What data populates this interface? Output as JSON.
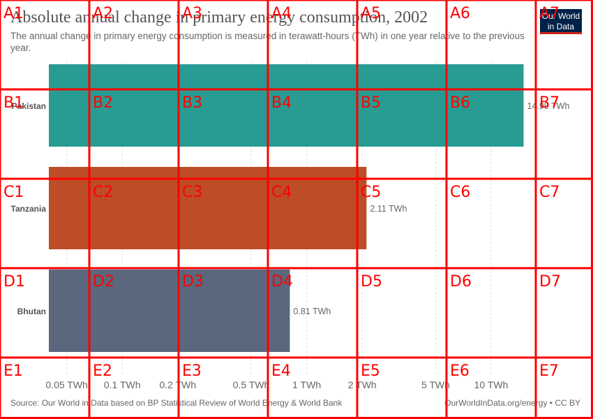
{
  "header": {
    "title": "Absolute annual change in primary energy consumption, 2002",
    "subtitle": "The annual change in primary energy consumption is measured in terawatt-hours (TWh) in one year relative to the previous year."
  },
  "logo": {
    "line1": "Our World",
    "line2": "in Data"
  },
  "chart_data": {
    "type": "bar",
    "orientation": "horizontal",
    "x_scale": "log",
    "xlim": [
      0.04,
      16
    ],
    "categories": [
      "Pakistan",
      "Tanzania",
      "Bhutan"
    ],
    "values": [
      14.99,
      2.11,
      0.81
    ],
    "value_labels": [
      "14.99 TWh",
      "2.11 TWh",
      "0.81 TWh"
    ],
    "bar_colors": [
      "#18958b",
      "#b83f16",
      "#4d5b73"
    ],
    "ticks": [
      {
        "value": 0.05,
        "label": "0.05 TWh"
      },
      {
        "value": 0.1,
        "label": "0.1 TWh"
      },
      {
        "value": 0.2,
        "label": "0.2 TWh"
      },
      {
        "value": 0.5,
        "label": "0.5 TWh"
      },
      {
        "value": 1,
        "label": "1 TWh"
      },
      {
        "value": 2,
        "label": "2 TWh"
      },
      {
        "value": 5,
        "label": "5 TWh"
      },
      {
        "value": 10,
        "label": "10 TWh"
      }
    ],
    "grid": true
  },
  "footer": {
    "source": "Source: Our World in Data based on BP Statistical Review of World Energy & World Bank",
    "url": "OurWorldInData.org/energy • CC BY"
  },
  "overlay": {
    "rows": [
      "A",
      "B",
      "C",
      "D",
      "E"
    ],
    "cols": [
      "1",
      "2",
      "3",
      "4",
      "5",
      "6",
      "7"
    ],
    "color": "#ff0000"
  }
}
